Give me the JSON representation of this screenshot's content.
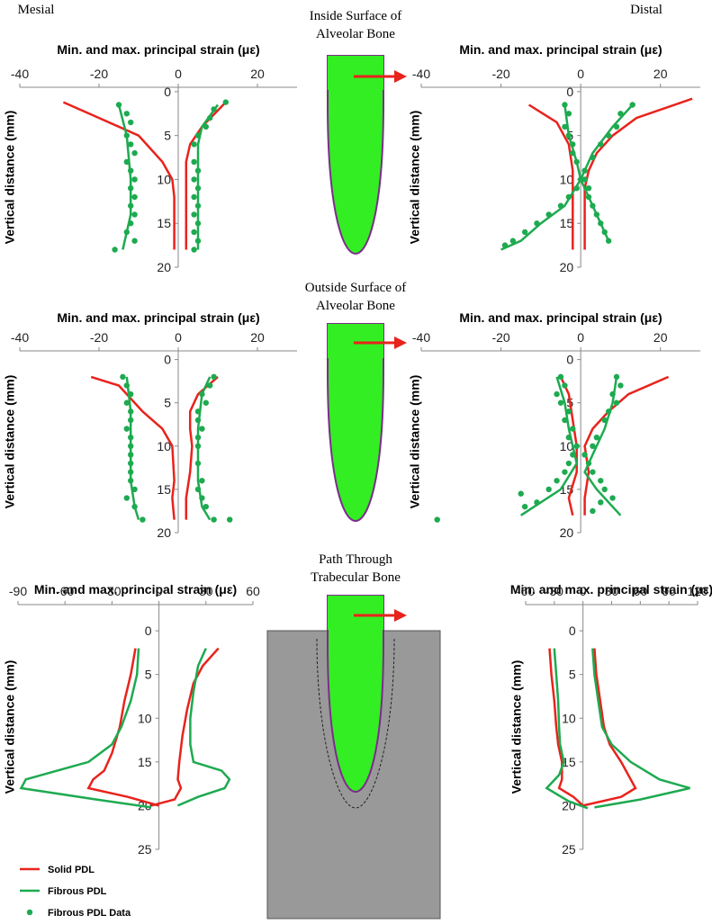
{
  "side_labels": [
    "Mesial",
    "Distal"
  ],
  "row_titles": [
    [
      "Inside Surface of",
      "Alveolar Bone"
    ],
    [
      "Outside Surface of",
      "Alveolar Bone"
    ],
    [
      "Path Through",
      "Trabecular Bone"
    ]
  ],
  "legend": [
    {
      "name": "Solid PDL",
      "color": "#e8231c",
      "kind": "line"
    },
    {
      "name": "Fibrous PDL",
      "color": "#1daa50",
      "kind": "line"
    },
    {
      "name": "Fibrous PDL Data",
      "color": "#1daa50",
      "kind": "scatter"
    }
  ],
  "chart_data": [
    {
      "type": "line",
      "x_label": "Min. and max. principal strain (με)",
      "y_label": "Vertical distance (mm)",
      "xlim": [
        -40,
        30
      ],
      "xticks": [
        -40,
        -20,
        0,
        20
      ],
      "ylim": [
        -0.5,
        20
      ],
      "yticks": [
        0,
        5,
        10,
        15,
        20
      ],
      "y_reversed": true,
      "series": [
        {
          "color": "#e8231c",
          "kind": "line",
          "x": [
            -29,
            -20,
            -10,
            -4,
            -1.5,
            -1,
            -1
          ],
          "y": [
            1.2,
            3,
            5,
            8,
            10,
            12,
            18
          ]
        },
        {
          "color": "#e8231c",
          "kind": "line",
          "x": [
            12,
            6,
            3,
            2,
            2,
            2,
            2
          ],
          "y": [
            1.2,
            4,
            6,
            8,
            10,
            14,
            18
          ]
        },
        {
          "color": "#1daa50",
          "kind": "line",
          "x": [
            -15,
            -13,
            -12,
            -12,
            -13,
            -14
          ],
          "y": [
            1.5,
            5,
            10,
            14,
            16,
            18
          ]
        },
        {
          "color": "#1daa50",
          "kind": "line",
          "x": [
            10,
            6,
            5,
            5,
            5
          ],
          "y": [
            1.5,
            4,
            6,
            10,
            18
          ]
        },
        {
          "color": "#1daa50",
          "kind": "scatter",
          "x": [
            -15,
            -13,
            -12,
            -13,
            -12,
            -11,
            -13,
            -12,
            -11,
            -12,
            -11,
            -12,
            -11,
            -12,
            -13,
            -11,
            -16,
            12,
            9,
            8,
            7,
            5,
            4,
            4,
            5,
            4,
            5,
            4,
            5,
            4,
            5,
            4,
            5,
            4
          ],
          "y": [
            1.5,
            2.5,
            3.5,
            5,
            6,
            7,
            8,
            9,
            10,
            11,
            12,
            13,
            14,
            15,
            16,
            17,
            18,
            1.2,
            2,
            3,
            4,
            5,
            6,
            8,
            9,
            10,
            11,
            12,
            13,
            14,
            15,
            16,
            17,
            18
          ]
        }
      ]
    },
    {
      "type": "line",
      "x_label": "Min. and max. principal strain (με)",
      "y_label": "Vertical distance (mm)",
      "xlim": [
        -40,
        30
      ],
      "xticks": [
        -40,
        -20,
        0,
        20
      ],
      "ylim": [
        -0.5,
        20
      ],
      "yticks": [
        0,
        5,
        10,
        15,
        20
      ],
      "y_reversed": true,
      "series": [
        {
          "color": "#e8231c",
          "kind": "line",
          "x": [
            -13,
            -6,
            -3,
            -2,
            -2
          ],
          "y": [
            1.5,
            3.5,
            6,
            9,
            18
          ]
        },
        {
          "color": "#e8231c",
          "kind": "line",
          "x": [
            28,
            14,
            8,
            4,
            2,
            1,
            1,
            1
          ],
          "y": [
            0.8,
            3,
            5,
            7,
            9,
            11,
            14,
            18
          ]
        },
        {
          "color": "#1daa50",
          "kind": "line",
          "x": [
            13,
            8,
            3,
            0,
            -4,
            -10,
            -15,
            -20
          ],
          "y": [
            1.5,
            4,
            7,
            10,
            13,
            15,
            17,
            18
          ]
        },
        {
          "color": "#1daa50",
          "kind": "line",
          "x": [
            -4,
            -3,
            -1,
            0,
            2,
            5,
            7
          ],
          "y": [
            1.5,
            5,
            8,
            10,
            12,
            15,
            17
          ]
        },
        {
          "color": "#1daa50",
          "kind": "scatter",
          "x": [
            13,
            10,
            9,
            7,
            5,
            3,
            1,
            0,
            -1,
            -3,
            -5,
            -8,
            -11,
            -14,
            -17,
            -19,
            -4,
            -3,
            -4,
            -3,
            -2,
            -2,
            -1,
            1,
            2,
            2,
            3,
            4,
            5,
            6,
            7
          ],
          "y": [
            1.5,
            2.5,
            4,
            5,
            6,
            7.5,
            9,
            10,
            11,
            12,
            13,
            14,
            15,
            16,
            17,
            17.5,
            1.5,
            2.5,
            4,
            5,
            6,
            7,
            8,
            10,
            11,
            12,
            13,
            14,
            15,
            16,
            17
          ]
        }
      ]
    },
    {
      "type": "line",
      "x_label": "Min. and max. principal strain (με)",
      "y_label": "Vertical distance (mm)",
      "xlim": [
        -40,
        30
      ],
      "xticks": [
        -40,
        -20,
        0,
        20
      ],
      "ylim": [
        -1,
        20
      ],
      "yticks": [
        0,
        5,
        10,
        15,
        20
      ],
      "y_reversed": true,
      "series": [
        {
          "color": "#e8231c",
          "kind": "line",
          "x": [
            -22,
            -15,
            -9,
            -4,
            -1.5,
            -1,
            -1.5,
            -1
          ],
          "y": [
            2,
            3,
            6,
            8,
            10,
            14,
            16,
            18.5
          ]
        },
        {
          "color": "#e8231c",
          "kind": "line",
          "x": [
            10,
            5,
            3,
            3,
            3.5,
            3,
            2,
            2
          ],
          "y": [
            2,
            4,
            6,
            8,
            10,
            13,
            16,
            18.5
          ]
        },
        {
          "color": "#1daa50",
          "kind": "line",
          "x": [
            -13,
            -12,
            -12,
            -12,
            -11,
            -10
          ],
          "y": [
            2,
            6,
            10,
            14,
            17,
            18.5
          ]
        },
        {
          "color": "#1daa50",
          "kind": "line",
          "x": [
            8,
            6,
            5,
            5,
            6,
            8
          ],
          "y": [
            2,
            4,
            8,
            14,
            17,
            18.5
          ]
        },
        {
          "color": "#1daa50",
          "kind": "scatter",
          "x": [
            -14,
            -13,
            -12,
            -13,
            -12,
            -12,
            -13,
            -12,
            -12,
            -12,
            -12,
            -12,
            -12,
            -11,
            -13,
            -11,
            -9,
            9,
            8,
            6,
            7,
            5,
            5,
            6,
            5,
            5,
            5,
            6,
            5,
            6,
            7,
            9,
            13
          ],
          "y": [
            2,
            3,
            4,
            5,
            6,
            7,
            8,
            9,
            10,
            11,
            12,
            13,
            14,
            15,
            16,
            17,
            18.5,
            2,
            3,
            4,
            5,
            6,
            7,
            8,
            9,
            10,
            12,
            14,
            15,
            16,
            17,
            18.5,
            18.5
          ]
        }
      ]
    },
    {
      "type": "line",
      "x_label": "Min. and max. principal strain (με)",
      "y_label": "Vertical distance (mm)",
      "xlim": [
        -40,
        30
      ],
      "xticks": [
        -40,
        -20,
        0,
        20
      ],
      "ylim": [
        -1,
        20
      ],
      "yticks": [
        0,
        5,
        10,
        15,
        20
      ],
      "y_reversed": true,
      "series": [
        {
          "color": "#e8231c",
          "kind": "line",
          "x": [
            -5,
            -3,
            -2,
            -1,
            -1,
            -3,
            -2
          ],
          "y": [
            2,
            4,
            7,
            10,
            13,
            16,
            18
          ]
        },
        {
          "color": "#e8231c",
          "kind": "line",
          "x": [
            22,
            12,
            7,
            3,
            1,
            2,
            1,
            1
          ],
          "y": [
            2,
            4,
            6,
            8,
            10,
            13,
            16,
            18
          ]
        },
        {
          "color": "#1daa50",
          "kind": "line",
          "x": [
            -6,
            -4,
            -3,
            -1,
            -5,
            -15
          ],
          "y": [
            2,
            5,
            8,
            12,
            15,
            18
          ]
        },
        {
          "color": "#1daa50",
          "kind": "line",
          "x": [
            9,
            8,
            6,
            3,
            1,
            4,
            10
          ],
          "y": [
            2,
            5,
            8,
            11,
            13,
            15,
            18
          ]
        },
        {
          "color": "#1daa50",
          "kind": "scatter",
          "x": [
            -5,
            -4,
            -6,
            -5,
            -3,
            -4,
            -2,
            -3,
            -1,
            -2,
            -3,
            -4,
            -6,
            -8,
            -15,
            -11,
            -14,
            -36,
            9,
            10,
            8,
            9,
            7,
            6,
            4,
            3,
            1,
            2,
            3,
            5,
            6,
            8,
            5,
            3
          ],
          "y": [
            2,
            3,
            4,
            5,
            6,
            7,
            8,
            9,
            10,
            11,
            12,
            13,
            14,
            15,
            15.5,
            16.5,
            17,
            18.5,
            2,
            3,
            4,
            5,
            6,
            7,
            9,
            10,
            11,
            12,
            13,
            14,
            15,
            16,
            16.5,
            17.5
          ]
        }
      ]
    },
    {
      "type": "line",
      "x_label": "Min. and max. principal strain (με)",
      "y_label": "Vertical distance (mm)",
      "xlim": [
        -90,
        60
      ],
      "xticks": [
        -90,
        -60,
        -30,
        0,
        30,
        60
      ],
      "ylim": [
        -3,
        25
      ],
      "yticks": [
        0,
        5,
        10,
        15,
        20,
        25
      ],
      "y_reversed": true,
      "series": [
        {
          "color": "#e8231c",
          "kind": "line",
          "x": [
            -15,
            -18,
            -22,
            -25,
            -30,
            -35,
            -42,
            -45,
            -20,
            0
          ],
          "y": [
            2,
            5,
            8,
            11,
            14,
            16,
            17,
            18,
            19,
            20
          ]
        },
        {
          "color": "#e8231c",
          "kind": "line",
          "x": [
            38,
            28,
            22,
            18,
            15,
            13,
            12,
            14,
            10,
            -5
          ],
          "y": [
            2,
            4,
            6,
            9,
            12,
            15,
            17,
            18,
            19.3,
            20
          ]
        },
        {
          "color": "#1daa50",
          "kind": "line",
          "x": [
            -13,
            -14,
            -18,
            -24,
            -30,
            -45,
            -65,
            -85,
            -88,
            -40,
            -5
          ],
          "y": [
            2,
            5,
            8,
            11,
            13,
            15,
            16,
            17,
            18,
            19.3,
            20.2
          ]
        },
        {
          "color": "#1daa50",
          "kind": "line",
          "x": [
            30,
            25,
            22,
            20,
            20,
            22,
            40,
            45,
            42,
            25,
            12
          ],
          "y": [
            2,
            4,
            7,
            10,
            13,
            15,
            16,
            17,
            18,
            19,
            20
          ]
        }
      ]
    },
    {
      "type": "line",
      "x_label": "Min. and max. principal strain (με)",
      "y_label": "Vertical distance (mm)",
      "xlim": [
        -60,
        120
      ],
      "xticks": [
        -60,
        -30,
        0,
        30,
        60,
        90,
        120
      ],
      "ylim": [
        -3,
        25
      ],
      "yticks": [
        0,
        5,
        10,
        15,
        20,
        25
      ],
      "y_reversed": true,
      "series": [
        {
          "color": "#e8231c",
          "kind": "line",
          "x": [
            -35,
            -33,
            -30,
            -28,
            -26,
            -22,
            -22,
            -25,
            -10,
            0
          ],
          "y": [
            2,
            5,
            8,
            11,
            13,
            15,
            17,
            18,
            19,
            20
          ]
        },
        {
          "color": "#e8231c",
          "kind": "line",
          "x": [
            12,
            14,
            18,
            22,
            28,
            40,
            50,
            55,
            40,
            0
          ],
          "y": [
            2,
            5,
            8,
            11,
            13,
            15,
            17,
            18,
            19,
            20
          ]
        },
        {
          "color": "#1daa50",
          "kind": "line",
          "x": [
            -30,
            -28,
            -26,
            -25,
            -24,
            -20,
            -25,
            -38,
            -15,
            5
          ],
          "y": [
            2,
            5,
            8,
            11,
            13,
            15,
            16.5,
            18,
            19.5,
            20.3
          ]
        },
        {
          "color": "#1daa50",
          "kind": "line",
          "x": [
            10,
            12,
            16,
            20,
            30,
            50,
            80,
            112,
            60,
            12
          ],
          "y": [
            2,
            5,
            8,
            11,
            13,
            15,
            17,
            18,
            19.3,
            20.2
          ]
        }
      ]
    }
  ]
}
